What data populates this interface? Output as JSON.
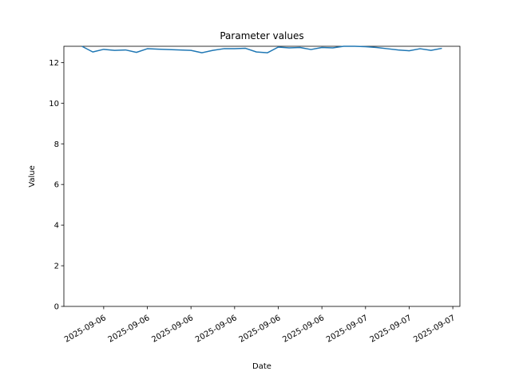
{
  "chart_data": {
    "type": "line",
    "title": "Parameter values",
    "xlabel": "Date",
    "ylabel": "Value",
    "ylim": [
      0,
      12.8
    ],
    "y_ticks": [
      0,
      2,
      4,
      6,
      8,
      10,
      12
    ],
    "x_tick_labels": [
      "2025-09-06",
      "2025-09-06",
      "2025-09-06",
      "2025-09-06",
      "2025-09-06",
      "2025-09-06",
      "2025-09-07",
      "2025-09-07",
      "2025-09-07"
    ],
    "grid": false,
    "legend": "none",
    "series": [
      {
        "color": "#1f77b4",
        "x": [
          "2025-09-06 04:00",
          "2025-09-06 05:00",
          "2025-09-06 06:00",
          "2025-09-06 07:00",
          "2025-09-06 08:00",
          "2025-09-06 09:00",
          "2025-09-06 10:00",
          "2025-09-06 11:00",
          "2025-09-06 12:00",
          "2025-09-06 13:00",
          "2025-09-06 14:00",
          "2025-09-06 15:00",
          "2025-09-06 16:00",
          "2025-09-06 17:00",
          "2025-09-06 18:00",
          "2025-09-06 19:00",
          "2025-09-06 20:00",
          "2025-09-06 21:00",
          "2025-09-06 22:00",
          "2025-09-06 23:00",
          "2025-09-07 00:00",
          "2025-09-07 01:00",
          "2025-09-07 02:00",
          "2025-09-07 03:00",
          "2025-09-07 04:00",
          "2025-09-07 05:00",
          "2025-09-07 06:00",
          "2025-09-07 07:00",
          "2025-09-07 08:00",
          "2025-09-07 09:00",
          "2025-09-07 10:00",
          "2025-09-07 11:00",
          "2025-09-07 12:00",
          "2025-09-07 13:00"
        ],
        "y": [
          12.8,
          12.52,
          12.65,
          12.6,
          12.62,
          12.5,
          12.68,
          12.66,
          12.64,
          12.62,
          12.6,
          12.48,
          12.6,
          12.68,
          12.68,
          12.7,
          12.52,
          12.48,
          12.76,
          12.72,
          12.74,
          12.64,
          12.74,
          12.72,
          12.8,
          12.8,
          12.78,
          12.74,
          12.68,
          12.62,
          12.58,
          12.68,
          12.6,
          12.7
        ]
      }
    ]
  }
}
